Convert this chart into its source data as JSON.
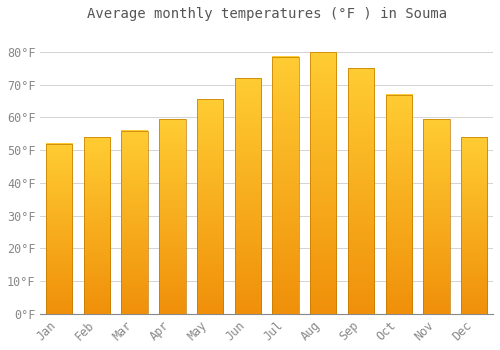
{
  "title": "Average monthly temperatures (°F ) in Souma",
  "months": [
    "Jan",
    "Feb",
    "Mar",
    "Apr",
    "May",
    "Jun",
    "Jul",
    "Aug",
    "Sep",
    "Oct",
    "Nov",
    "Dec"
  ],
  "values": [
    52,
    54,
    56,
    59.5,
    65.5,
    72,
    78.5,
    80,
    75,
    67,
    59.5,
    54
  ],
  "bar_color_top": "#FFCC33",
  "bar_color_bottom": "#F0900A",
  "bar_edge_color": "#C07800",
  "background_color": "#FFFFFF",
  "grid_color": "#CCCCCC",
  "text_color": "#888888",
  "title_color": "#555555",
  "ylim": [
    0,
    87
  ],
  "yticks": [
    0,
    10,
    20,
    30,
    40,
    50,
    60,
    70,
    80
  ],
  "title_fontsize": 10,
  "tick_fontsize": 8.5,
  "bar_width": 0.7
}
